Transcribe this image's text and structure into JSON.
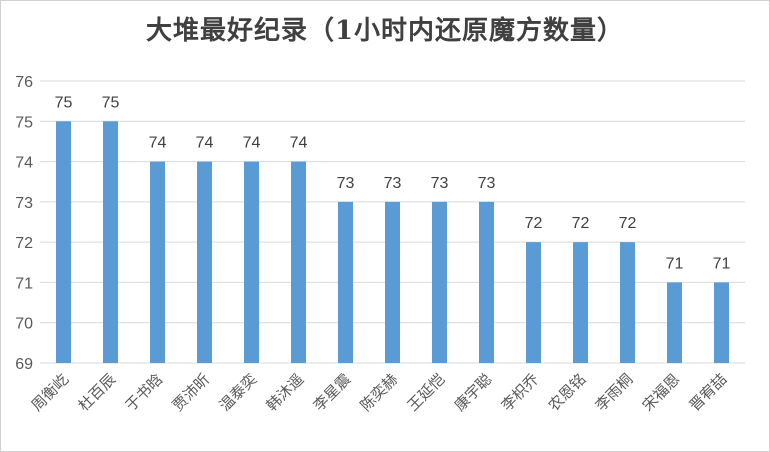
{
  "chart_data": {
    "type": "bar",
    "title": "大堆最好纪录（1小时内还原魔方数量）",
    "xlabel": "",
    "ylabel": "",
    "categories": [
      "周衡屹",
      "杜百辰",
      "于书晗",
      "贾沛昕",
      "温泰奕",
      "韩沐遥",
      "李星震",
      "陈奕赫",
      "王延恺",
      "康宇聪",
      "李枳乔",
      "农恩铭",
      "李雨桐",
      "宋福恩",
      "晋宥喆"
    ],
    "values": [
      75,
      75,
      74,
      74,
      74,
      74,
      73,
      73,
      73,
      73,
      72,
      72,
      72,
      71,
      71
    ],
    "ylim": [
      69,
      76
    ],
    "yticks": [
      69,
      70,
      71,
      72,
      73,
      74,
      75,
      76
    ],
    "grid": true,
    "legend": "none",
    "bar_color": "#5B9BD5",
    "grid_color": "#d9d9d9"
  }
}
